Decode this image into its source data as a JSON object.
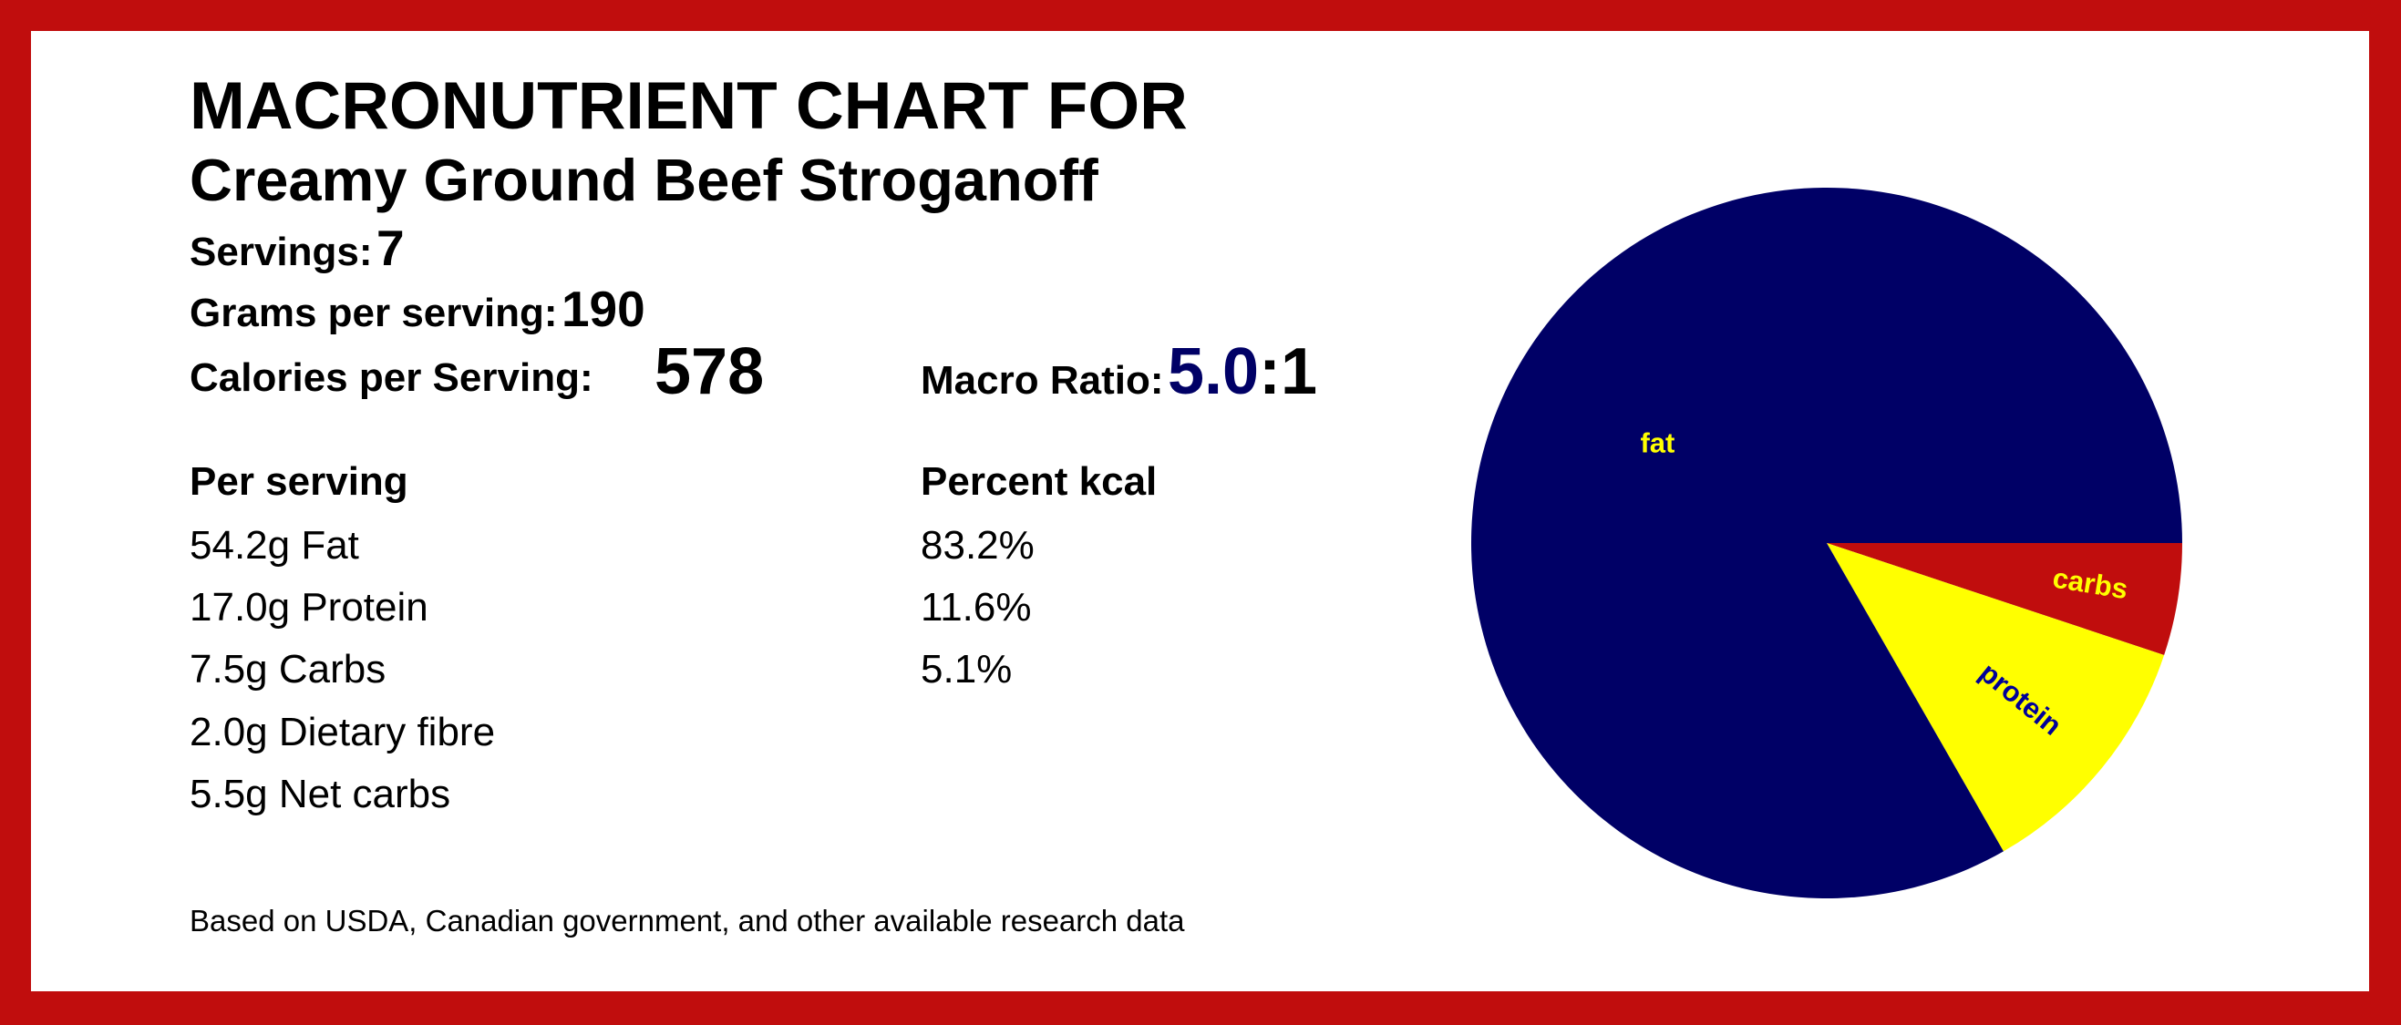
{
  "title": "MACRONUTRIENT CHART FOR",
  "recipe": "Creamy Ground Beef Stroganoff",
  "servings_label": "Servings:",
  "servings": "7",
  "grams_label": "Grams per serving:",
  "grams": "190",
  "calories_label": "Calories per Serving:",
  "calories": "578",
  "ratio_label": "Macro Ratio:",
  "ratio_value": "5.0",
  "ratio_suffix": ":1",
  "per_serving_header": "Per serving",
  "percent_header": "Percent kcal",
  "per_serving": [
    "54.2g Fat",
    "17.0g Protein",
    "7.5g Carbs",
    "2.0g Dietary fibre",
    "5.5g Net carbs"
  ],
  "percents": [
    "83.2%",
    "11.6%",
    "5.1%"
  ],
  "footnote": "Based on USDA, Canadian government, and other available research data",
  "colors": {
    "border": "#c00d0d",
    "fat": "#000066",
    "protein": "#ffff00",
    "carbs": "#c00d0d",
    "ratio": "#000066",
    "fat_label": "#ffff00",
    "protein_label": "#000099",
    "carbs_label": "#ffff00"
  },
  "chart_data": {
    "type": "pie",
    "slices": [
      {
        "label": "carbs",
        "value": 5.1
      },
      {
        "label": "protein",
        "value": 11.6
      },
      {
        "label": "fat",
        "value": 83.2
      }
    ]
  }
}
